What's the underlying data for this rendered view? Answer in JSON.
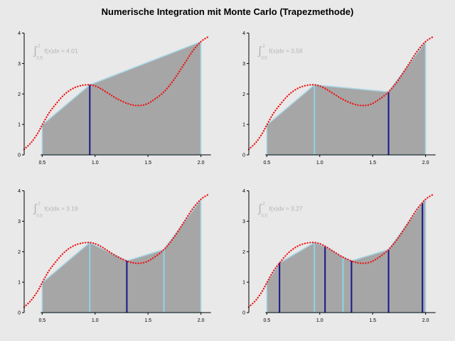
{
  "title": "Numerische Integration mit Monte Carlo (Trapezmethode)",
  "colors": {
    "background": "#e9e9e9",
    "curve": "#ee1111",
    "fill": "#a6a6a6",
    "edge": "#a9d7e6",
    "dark_line": "#16168c",
    "light_line": "#8fd4e8",
    "annotation": "#b4b4b4",
    "axis": "#000000",
    "title": "#000000"
  },
  "chart_data": {
    "type": "line",
    "title": "Numerische Integration mit Monte Carlo (Trapezmethode)",
    "xlabel": "",
    "ylabel": "",
    "axes": {
      "xlim": [
        0.33,
        2.13
      ],
      "ylim": [
        0,
        4.2
      ],
      "x_ticks": [
        {
          "v": 0.5,
          "label": "0.5"
        },
        {
          "v": 1.0,
          "label": "1.0"
        },
        {
          "v": 1.5,
          "label": "1.5"
        },
        {
          "v": 2.0,
          "label": "2.0"
        }
      ],
      "y_ticks": [
        {
          "v": 0,
          "label": "0"
        },
        {
          "v": 1,
          "label": "1"
        },
        {
          "v": 2,
          "label": "2"
        },
        {
          "v": 3,
          "label": "3"
        },
        {
          "v": 4,
          "label": "4"
        }
      ]
    },
    "integration_bounds": [
      0.5,
      2.0
    ],
    "annotation": {
      "integral_symbol": "∫",
      "upper": "2",
      "lower": "0.5",
      "body": "f(x)dx",
      "approx_sign": "≈"
    },
    "curve_points": [
      [
        0.33,
        0.18
      ],
      [
        0.4,
        0.42
      ],
      [
        0.46,
        0.72
      ],
      [
        0.5,
        0.98
      ],
      [
        0.56,
        1.35
      ],
      [
        0.62,
        1.63
      ],
      [
        0.7,
        1.95
      ],
      [
        0.78,
        2.16
      ],
      [
        0.86,
        2.27
      ],
      [
        0.95,
        2.3
      ],
      [
        1.03,
        2.22
      ],
      [
        1.12,
        2.03
      ],
      [
        1.22,
        1.82
      ],
      [
        1.32,
        1.67
      ],
      [
        1.4,
        1.62
      ],
      [
        1.48,
        1.66
      ],
      [
        1.56,
        1.82
      ],
      [
        1.65,
        2.07
      ],
      [
        1.74,
        2.45
      ],
      [
        1.83,
        2.92
      ],
      [
        1.92,
        3.4
      ],
      [
        2.0,
        3.72
      ],
      [
        2.07,
        3.88
      ]
    ],
    "panels": [
      {
        "name": "top-left",
        "approx": "4.01",
        "samples": [
          {
            "x": 0.95,
            "shade": "dark"
          }
        ]
      },
      {
        "name": "top-right",
        "approx": "3.58",
        "samples": [
          {
            "x": 0.95,
            "shade": "light"
          },
          {
            "x": 1.65,
            "shade": "dark"
          }
        ]
      },
      {
        "name": "bottom-left",
        "approx": "3.19",
        "samples": [
          {
            "x": 0.95,
            "shade": "light"
          },
          {
            "x": 1.3,
            "shade": "dark"
          },
          {
            "x": 1.65,
            "shade": "light"
          }
        ]
      },
      {
        "name": "bottom-right",
        "approx": "3.27",
        "samples": [
          {
            "x": 0.62,
            "shade": "dark"
          },
          {
            "x": 0.95,
            "shade": "light"
          },
          {
            "x": 1.05,
            "shade": "dark"
          },
          {
            "x": 1.22,
            "shade": "light"
          },
          {
            "x": 1.3,
            "shade": "dark"
          },
          {
            "x": 1.65,
            "shade": "dark"
          },
          {
            "x": 1.97,
            "shade": "dark"
          }
        ]
      }
    ]
  }
}
